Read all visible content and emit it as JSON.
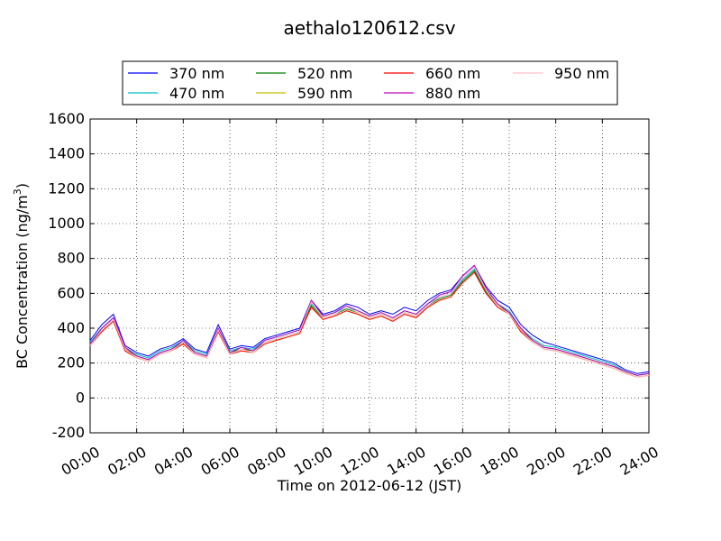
{
  "chart_data": {
    "type": "line",
    "title": "aethalo120612.csv",
    "xlabel": "Time on 2012-06-12 (JST)",
    "ylabel_main": "BC Concentration (ng/m",
    "ylabel_sup": "3",
    "ylabel_close": ")",
    "xlim": [
      "00:00",
      "24:00"
    ],
    "ylim": [
      -200,
      1600
    ],
    "grid": true,
    "legend_position": "top-center",
    "x_ticks": [
      "00:00",
      "02:00",
      "04:00",
      "06:00",
      "08:00",
      "10:00",
      "12:00",
      "14:00",
      "16:00",
      "18:00",
      "20:00",
      "22:00",
      "24:00"
    ],
    "y_ticks": [
      "-200",
      "0",
      "200",
      "400",
      "600",
      "800",
      "1000",
      "1200",
      "1400",
      "1600"
    ],
    "x_hours": [
      "00:00",
      "00:30",
      "01:00",
      "01:30",
      "02:00",
      "02:30",
      "03:00",
      "03:30",
      "04:00",
      "04:30",
      "05:00",
      "05:30",
      "06:00",
      "06:30",
      "07:00",
      "07:30",
      "08:00",
      "08:30",
      "09:00",
      "09:30",
      "10:00",
      "10:30",
      "11:00",
      "11:30",
      "12:00",
      "12:30",
      "13:00",
      "13:30",
      "14:00",
      "14:30",
      "15:00",
      "15:30",
      "16:00",
      "16:30",
      "17:00",
      "17:30",
      "18:00",
      "18:30",
      "19:00",
      "19:30",
      "20:00",
      "20:30",
      "21:00",
      "21:30",
      "22:00",
      "22:30",
      "23:00",
      "23:30",
      "24:00"
    ],
    "series": [
      {
        "name": "370 nm",
        "color": "#0000ff",
        "values": [
          330,
          420,
          480,
          300,
          260,
          240,
          280,
          300,
          340,
          280,
          260,
          420,
          280,
          300,
          290,
          340,
          360,
          380,
          400,
          560,
          480,
          500,
          540,
          520,
          480,
          500,
          480,
          520,
          500,
          560,
          600,
          620,
          700,
          760,
          640,
          560,
          520,
          420,
          360,
          320,
          300,
          280,
          260,
          240,
          220,
          200,
          160,
          140,
          150
        ]
      },
      {
        "name": "470 nm",
        "color": "#00bfbf",
        "values": [
          320,
          400,
          460,
          290,
          250,
          230,
          270,
          290,
          330,
          270,
          250,
          400,
          270,
          290,
          280,
          330,
          350,
          370,
          390,
          540,
          470,
          490,
          520,
          500,
          470,
          490,
          460,
          500,
          480,
          540,
          580,
          600,
          680,
          740,
          620,
          540,
          500,
          400,
          340,
          300,
          290,
          270,
          250,
          230,
          210,
          190,
          150,
          130,
          140
        ]
      },
      {
        "name": "520 nm",
        "color": "#008000",
        "values": [
          310,
          390,
          450,
          280,
          240,
          220,
          260,
          280,
          320,
          260,
          240,
          390,
          260,
          280,
          270,
          320,
          340,
          360,
          380,
          530,
          460,
          480,
          510,
          490,
          460,
          480,
          450,
          490,
          470,
          530,
          570,
          590,
          670,
          730,
          610,
          530,
          490,
          390,
          330,
          290,
          280,
          260,
          240,
          220,
          200,
          180,
          150,
          130,
          140
        ]
      },
      {
        "name": "590 nm",
        "color": "#bfbf00",
        "values": [
          300,
          380,
          440,
          270,
          230,
          210,
          250,
          270,
          310,
          250,
          230,
          380,
          250,
          270,
          260,
          310,
          330,
          350,
          370,
          520,
          450,
          470,
          500,
          480,
          450,
          470,
          440,
          480,
          460,
          520,
          560,
          580,
          660,
          720,
          600,
          520,
          480,
          380,
          320,
          280,
          270,
          250,
          230,
          210,
          190,
          170,
          140,
          120,
          130
        ]
      },
      {
        "name": "660 nm",
        "color": "#ff0000",
        "values": [
          300,
          380,
          440,
          270,
          230,
          210,
          250,
          270,
          310,
          250,
          230,
          380,
          250,
          270,
          260,
          310,
          330,
          350,
          370,
          520,
          450,
          470,
          500,
          480,
          450,
          470,
          440,
          480,
          460,
          520,
          560,
          580,
          660,
          720,
          600,
          520,
          480,
          380,
          320,
          280,
          270,
          250,
          230,
          210,
          190,
          170,
          140,
          120,
          130
        ]
      },
      {
        "name": "880 nm",
        "color": "#bf00bf",
        "values": [
          310,
          400,
          460,
          290,
          240,
          220,
          260,
          280,
          330,
          260,
          240,
          400,
          260,
          290,
          270,
          330,
          350,
          370,
          390,
          560,
          470,
          490,
          530,
          500,
          470,
          490,
          460,
          500,
          480,
          540,
          590,
          610,
          700,
          760,
          630,
          540,
          490,
          400,
          330,
          290,
          280,
          260,
          240,
          220,
          200,
          180,
          150,
          130,
          140
        ]
      },
      {
        "name": "950 nm",
        "color": "#ffc0cb",
        "values": [
          300,
          390,
          450,
          280,
          230,
          210,
          250,
          270,
          320,
          250,
          230,
          390,
          250,
          280,
          260,
          320,
          340,
          360,
          380,
          550,
          460,
          480,
          520,
          490,
          460,
          480,
          450,
          490,
          470,
          530,
          580,
          600,
          690,
          750,
          620,
          530,
          480,
          390,
          320,
          280,
          270,
          250,
          230,
          210,
          190,
          170,
          140,
          120,
          130
        ]
      }
    ]
  }
}
